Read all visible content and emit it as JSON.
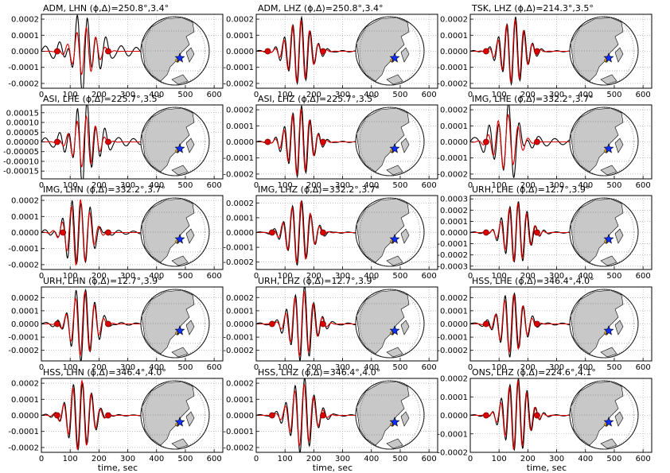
{
  "chart_data": {
    "type": "line",
    "layout": {
      "rows": 5,
      "cols": 3
    },
    "x_ticks": [
      0,
      100,
      200,
      300,
      400,
      500,
      600
    ],
    "xlim": [
      0,
      630
    ],
    "xlabel": "time, sec",
    "grid": true,
    "series_styles": {
      "observed": "#000000",
      "synthetic": "#dd0000"
    },
    "panels": [
      {
        "title": "ADM, LHN (ϕ,Δ)=250.8°,3.4°",
        "ylim": [
          -0.00023,
          0.00023
        ],
        "y_ticks": [
          "-0.0002",
          "-0.0001",
          "0.0000",
          "0.0001",
          "0.0002"
        ],
        "y_tick_values": [
          -0.0002,
          -0.0001,
          0,
          0.0001,
          0.0002
        ],
        "peak": 0.00023,
        "obs_amp": 0.9,
        "syn_amp": 0.65,
        "center": 150,
        "period": 33,
        "obs_tail": 0.38,
        "markers": [
          55,
          232
        ]
      },
      {
        "title": "ADM, LHZ (ϕ,Δ)=250.8°,3.4°",
        "ylim": [
          -0.00023,
          0.00023
        ],
        "y_ticks": [
          "-0.0002",
          "-0.0001",
          "0.0000",
          "0.0001",
          "0.0002"
        ],
        "y_tick_values": [
          -0.0002,
          -0.0001,
          0,
          0.0001,
          0.0002
        ],
        "peak": 0.00023,
        "obs_amp": 0.88,
        "syn_amp": 0.85,
        "center": 150,
        "period": 30,
        "obs_tail": 0.06,
        "markers": [
          40,
          232
        ]
      },
      {
        "title": "TSK, LHZ (ϕ,Δ)=214.3°,3.5°",
        "ylim": [
          -0.00023,
          0.00023
        ],
        "y_ticks": [
          "-0.0002",
          "-0.0001",
          "0.0000",
          "0.0001",
          "0.0002"
        ],
        "y_tick_values": [
          -0.0002,
          -0.0001,
          0,
          0.0001,
          0.0002
        ],
        "peak": 0.00023,
        "obs_amp": 0.9,
        "syn_amp": 0.86,
        "center": 150,
        "period": 30,
        "obs_tail": 0.05,
        "markers": [
          55,
          232
        ]
      },
      {
        "title": "ASI, LHE (ϕ,Δ)=225.7°,3.5°",
        "ylim": [
          -0.00019,
          0.00019
        ],
        "y_ticks": [
          "-0.00015",
          "-0.00010",
          "-0.00005",
          "0.00000",
          "0.00005",
          "0.00010",
          "0.00015"
        ],
        "y_tick_values": [
          -0.00015,
          -0.0001,
          -5e-05,
          0,
          5e-05,
          0.0001,
          0.00015
        ],
        "peak": 0.00019,
        "obs_amp": 1.0,
        "syn_amp": 0.7,
        "center": 150,
        "period": 32,
        "obs_tail": 0.3,
        "markers": [
          55,
          232
        ]
      },
      {
        "title": "ASI, LHZ (ϕ,Δ)=225.7°,3.5°",
        "ylim": [
          -0.00023,
          0.00023
        ],
        "y_ticks": [
          "-0.0002",
          "-0.0001",
          "0.0000",
          "0.0001",
          "0.0002"
        ],
        "y_tick_values": [
          -0.0002,
          -0.0001,
          0,
          0.0001,
          0.0002
        ],
        "peak": 0.00023,
        "obs_amp": 0.95,
        "syn_amp": 0.9,
        "center": 150,
        "period": 30,
        "obs_tail": 0.05,
        "markers": [
          40,
          232
        ]
      },
      {
        "title": "IMG, LHE (ϕ,Δ)=332.2°,3.7°",
        "ylim": [
          -0.00023,
          0.00023
        ],
        "y_ticks": [
          "-0.0002",
          "-0.0001",
          "0.0000",
          "0.0001",
          "0.0002"
        ],
        "y_tick_values": [
          -0.0002,
          -0.0001,
          0,
          0.0001,
          0.0002
        ],
        "peak": 0.00023,
        "obs_amp": 0.9,
        "syn_amp": 0.75,
        "center": 125,
        "period": 35,
        "obs_tail": 0.3,
        "markers": [
          55,
          232
        ]
      },
      {
        "title": "IMG, LHN (ϕ,Δ)=332.2°,3.7°",
        "ylim": [
          -0.00023,
          0.00023
        ],
        "y_ticks": [
          "-0.0002",
          "-0.0001",
          "0.0000",
          "0.0001",
          "0.0002"
        ],
        "y_tick_values": [
          -0.0002,
          -0.0001,
          0,
          0.0001,
          0.0002
        ],
        "peak": 0.00023,
        "obs_amp": 0.95,
        "syn_amp": 0.9,
        "center": 130,
        "period": 32,
        "obs_tail": 0.15,
        "markers": [
          75,
          232
        ]
      },
      {
        "title": "IMG, LHZ (ϕ,Δ)=332.2°,3.7°",
        "ylim": [
          -0.00025,
          0.00025
        ],
        "y_ticks": [
          "-0.0002",
          "-0.0001",
          "0.0000",
          "0.0001",
          "0.0002"
        ],
        "y_tick_values": [
          -0.0002,
          -0.0001,
          0,
          0.0001,
          0.0002
        ],
        "peak": 0.00025,
        "obs_amp": 0.85,
        "syn_amp": 0.85,
        "center": 150,
        "period": 32,
        "obs_tail": 0.05,
        "markers": [
          55,
          232
        ]
      },
      {
        "title": "URH, LHE (ϕ,Δ)=12.7°,3.9°",
        "ylim": [
          -0.00033,
          0.00033
        ],
        "y_ticks": [
          "-0.0003",
          "-0.0002",
          "-0.0001",
          "0.0000",
          "0.0001",
          "0.0002",
          "0.0003"
        ],
        "y_tick_values": [
          -0.0003,
          -0.0002,
          -0.0001,
          0,
          0.0001,
          0.0002,
          0.0003
        ],
        "peak": 0.00033,
        "obs_amp": 0.85,
        "syn_amp": 0.8,
        "center": 160,
        "period": 30,
        "obs_tail": 0.05,
        "markers": [
          55,
          232
        ]
      },
      {
        "title": "URH, LHN (ϕ,Δ)=12.7°,3.9°",
        "ylim": [
          -0.00028,
          0.00028
        ],
        "y_ticks": [
          "-0.0002",
          "-0.0001",
          "0.0000",
          "0.0001",
          "0.0002"
        ],
        "y_tick_values": [
          -0.0002,
          -0.0001,
          0,
          0.0001,
          0.0002
        ],
        "peak": 0.00028,
        "obs_amp": 1.0,
        "syn_amp": 0.88,
        "center": 145,
        "period": 33,
        "obs_tail": 0.1,
        "markers": [
          55,
          232
        ]
      },
      {
        "title": "URH, LHZ (ϕ,Δ)=12.7°,3.9°",
        "ylim": [
          -0.00028,
          0.00028
        ],
        "y_ticks": [
          "-0.0002",
          "-0.0001",
          "0.0000",
          "0.0001",
          "0.0002"
        ],
        "y_tick_values": [
          -0.0002,
          -0.0001,
          0,
          0.0001,
          0.0002
        ],
        "peak": 0.00028,
        "obs_amp": 1.0,
        "syn_amp": 0.9,
        "center": 160,
        "period": 32,
        "obs_tail": 0.08,
        "markers": [
          55,
          232
        ]
      },
      {
        "title": "HSS, LHE (ϕ,Δ)=346.4°,4.0°",
        "ylim": [
          -0.00028,
          0.00028
        ],
        "y_ticks": [
          "-0.0002",
          "-0.0001",
          "0.0000",
          "0.0001",
          "0.0002"
        ],
        "y_tick_values": [
          -0.0002,
          -0.0001,
          0,
          0.0001,
          0.0002
        ],
        "peak": 0.00028,
        "obs_amp": 0.85,
        "syn_amp": 0.8,
        "center": 145,
        "period": 32,
        "obs_tail": 0.08,
        "markers": [
          55,
          232
        ]
      },
      {
        "title": "HSS, LHN (ϕ,Δ)=346.4°,4.0°",
        "ylim": [
          -0.00023,
          0.00023
        ],
        "y_ticks": [
          "-0.0002",
          "-0.0001",
          "0.0000",
          "0.0001",
          "0.0002"
        ],
        "y_tick_values": [
          -0.0002,
          -0.0001,
          0,
          0.0001,
          0.0002
        ],
        "peak": 0.00023,
        "obs_amp": 0.95,
        "syn_amp": 0.95,
        "center": 135,
        "period": 32,
        "obs_tail": 0.05,
        "markers": [
          55,
          232
        ]
      },
      {
        "title": "HSS, LHZ (ϕ,Δ)=346.4°,4.0°",
        "ylim": [
          -0.00023,
          0.00023
        ],
        "y_ticks": [
          "-0.0002",
          "-0.0001",
          "0.0000",
          "0.0001",
          "0.0002"
        ],
        "y_tick_values": [
          -0.0002,
          -0.0001,
          0,
          0.0001,
          0.0002
        ],
        "peak": 0.00023,
        "obs_amp": 1.0,
        "syn_amp": 0.85,
        "center": 160,
        "period": 33,
        "obs_tail": 0.06,
        "markers": [
          55,
          232
        ]
      },
      {
        "title": "ONS, LHZ (ϕ,Δ)=224.6°,4.1°",
        "ylim": [
          -0.0002,
          0.0002
        ],
        "y_ticks": [
          "-0.0002",
          "-0.0001",
          "0.0000",
          "0.0001",
          "0.0002"
        ],
        "y_tick_values": [
          -0.0002,
          -0.0001,
          0,
          0.0001,
          0.0002
        ],
        "peak": 0.0002,
        "obs_amp": 1.0,
        "syn_amp": 0.95,
        "center": 160,
        "period": 30,
        "obs_tail": 0.05,
        "markers": [
          55,
          232
        ]
      }
    ]
  }
}
